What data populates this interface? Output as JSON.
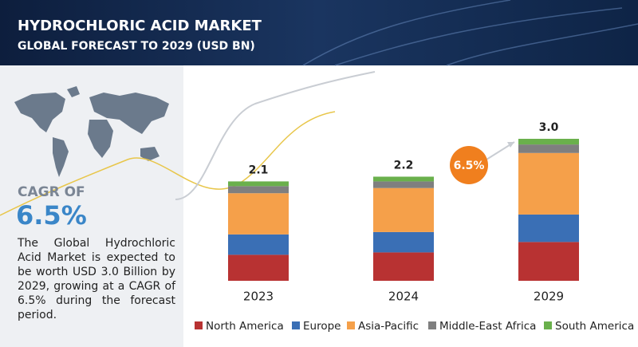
{
  "header": {
    "title": "HYDROCHLORIC ACID MARKET",
    "subtitle": "GLOBAL FORECAST TO 2029 (USD BN)"
  },
  "sidebar": {
    "cagr_label": "CAGR OF",
    "cagr_value": "6.5%",
    "description": "The Global Hydrochloric Acid Market is expected to be worth USD 3.0 Billion by 2029, growing at a CAGR of 6.5% during the forecast period."
  },
  "chart_data": {
    "type": "stacked_bar",
    "categories": [
      "2023",
      "2024",
      "2029"
    ],
    "series": [
      {
        "name": "North America",
        "color": "#b83232",
        "values": [
          0.55,
          0.6,
          0.82
        ]
      },
      {
        "name": "Europe",
        "color": "#3a6fb5",
        "values": [
          0.43,
          0.43,
          0.58
        ]
      },
      {
        "name": "Asia-Pacific",
        "color": "#f5a04a",
        "values": [
          0.87,
          0.93,
          1.3
        ]
      },
      {
        "name": "Middle-East Africa",
        "color": "#7f7f7f",
        "values": [
          0.15,
          0.14,
          0.18
        ]
      },
      {
        "name": "South America",
        "color": "#6ab04c",
        "values": [
          0.1,
          0.1,
          0.12
        ]
      }
    ],
    "totals": {
      "values": [
        2.1,
        2.2,
        3.0
      ],
      "value_labels": [
        "2.1",
        "2.2",
        "3.0"
      ]
    },
    "annotation": "6.5%"
  }
}
